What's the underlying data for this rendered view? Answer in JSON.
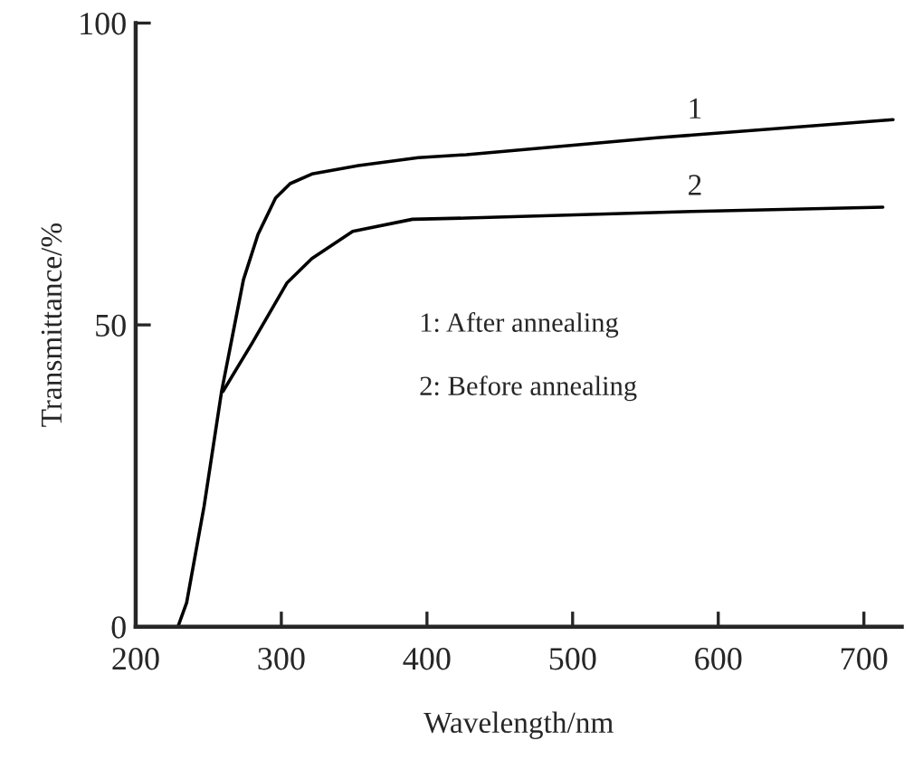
{
  "chart_data": {
    "type": "line",
    "xlabel": "Wavelength/nm",
    "ylabel": "Transmittance/%",
    "xlim": [
      200,
      726
    ],
    "ylim": [
      0,
      100
    ],
    "xticks": [
      200,
      300,
      400,
      500,
      600,
      700
    ],
    "yticks": [
      0,
      50,
      100
    ],
    "grid": false,
    "legend": false,
    "marker": "none",
    "line_style": "solid",
    "series": [
      {
        "color": "#000000",
        "x": [
          229,
          235,
          247,
          259,
          274,
          284,
          296,
          306,
          321,
          353,
          394,
          427,
          558,
          720
        ],
        "values": [
          0,
          4,
          20,
          39,
          57.5,
          65,
          71,
          73.4,
          75,
          76.4,
          77.7,
          78.2,
          81,
          84
        ]
      },
      {
        "color": "#000000",
        "x": [
          260,
          280,
          304,
          321,
          349,
          390,
          427,
          582,
          713
        ],
        "values": [
          39,
          47,
          57,
          61,
          65.5,
          67.5,
          67.7,
          68.8,
          69.5
        ]
      }
    ],
    "annotations": [
      "1",
      "2",
      "1: After annealing",
      "2: Before annealing"
    ]
  }
}
